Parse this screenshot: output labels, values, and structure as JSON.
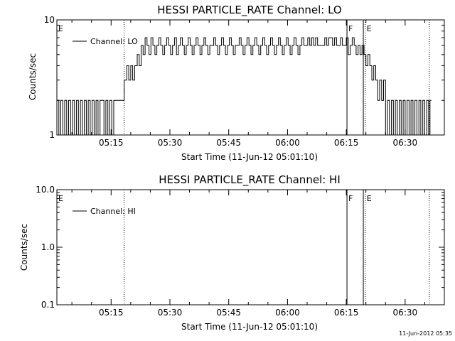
{
  "page": {
    "timestamp": "11-Jun-2012 05:35"
  },
  "chart_data": [
    {
      "type": "line",
      "title": "HESSI PARTICLE_RATE Channel: LO",
      "xlabel": "Start Time (11-Jun-12 05:01:10)",
      "ylabel": "Counts/sec",
      "xlim": [
        "05:01:10",
        "06:40:00"
      ],
      "ylim": [
        1,
        10
      ],
      "yscale": "log",
      "xticks": [
        "05:15",
        "05:30",
        "05:45",
        "06:00",
        "06:15",
        "06:30"
      ],
      "yticks": [
        "1",
        "10"
      ],
      "legend": {
        "label": "Channel: LO",
        "placement": "top-left"
      },
      "markers": [
        {
          "label": "E",
          "time": "05:01:10",
          "style": "dotted"
        },
        {
          "label": "",
          "time": "05:18:20",
          "style": "dotted"
        },
        {
          "label": "F",
          "time": "06:15:10",
          "style": "solid"
        },
        {
          "label": "",
          "time": "06:19:20",
          "style": "solid"
        },
        {
          "label": "E",
          "time": "06:19:50",
          "style": "dotted"
        },
        {
          "label": "",
          "time": "06:36:10",
          "style": "dotted"
        }
      ],
      "series": [
        {
          "name": "Channel: LO",
          "step": true,
          "data": [
            [
              "05:01:10",
              2
            ],
            [
              "05:01:40",
              1
            ],
            [
              "05:02:10",
              2
            ],
            [
              "05:02:40",
              1
            ],
            [
              "05:03:10",
              2
            ],
            [
              "05:03:40",
              1
            ],
            [
              "05:04:10",
              2
            ],
            [
              "05:04:40",
              1
            ],
            [
              "05:05:10",
              2
            ],
            [
              "05:05:40",
              1
            ],
            [
              "05:06:10",
              2
            ],
            [
              "05:06:40",
              1
            ],
            [
              "05:07:10",
              2
            ],
            [
              "05:07:40",
              1
            ],
            [
              "05:08:10",
              2
            ],
            [
              "05:08:40",
              1
            ],
            [
              "05:09:10",
              2
            ],
            [
              "05:09:40",
              1
            ],
            [
              "05:10:10",
              2
            ],
            [
              "05:10:40",
              1
            ],
            [
              "05:11:10",
              2
            ],
            [
              "05:11:40",
              1
            ],
            [
              "05:12:10",
              2
            ],
            [
              "05:13:10",
              1
            ],
            [
              "05:13:40",
              2
            ],
            [
              "05:14:10",
              1
            ],
            [
              "05:14:40",
              2
            ],
            [
              "05:15:10",
              1
            ],
            [
              "05:15:40",
              2
            ],
            [
              "05:18:00",
              2
            ],
            [
              "05:18:20",
              3
            ],
            [
              "05:19:00",
              4
            ],
            [
              "05:19:30",
              3
            ],
            [
              "05:20:00",
              4
            ],
            [
              "05:20:30",
              3
            ],
            [
              "05:21:00",
              4
            ],
            [
              "05:21:40",
              5
            ],
            [
              "05:22:10",
              4
            ],
            [
              "05:22:40",
              6
            ],
            [
              "05:23:10",
              5
            ],
            [
              "05:23:40",
              7
            ],
            [
              "05:24:10",
              6
            ],
            [
              "05:24:40",
              5
            ],
            [
              "05:25:10",
              7
            ],
            [
              "05:25:40",
              6
            ],
            [
              "05:26:10",
              5
            ],
            [
              "05:26:40",
              6
            ],
            [
              "05:27:10",
              7
            ],
            [
              "05:27:40",
              6
            ],
            [
              "05:28:10",
              5
            ],
            [
              "05:28:40",
              6
            ],
            [
              "05:29:10",
              7
            ],
            [
              "05:29:40",
              6
            ],
            [
              "05:30:10",
              5
            ],
            [
              "05:30:40",
              6
            ],
            [
              "05:31:10",
              7
            ],
            [
              "05:31:40",
              5
            ],
            [
              "05:32:10",
              6
            ],
            [
              "05:32:40",
              7
            ],
            [
              "05:33:10",
              6
            ],
            [
              "05:33:40",
              5
            ],
            [
              "05:34:10",
              6
            ],
            [
              "05:34:40",
              7
            ],
            [
              "05:35:10",
              6
            ],
            [
              "05:35:40",
              5
            ],
            [
              "05:36:10",
              6
            ],
            [
              "05:36:40",
              7
            ],
            [
              "05:37:10",
              6
            ],
            [
              "05:37:40",
              5
            ],
            [
              "05:38:10",
              6
            ],
            [
              "05:38:40",
              7
            ],
            [
              "05:39:10",
              6
            ],
            [
              "05:39:40",
              5
            ],
            [
              "05:40:10",
              6
            ],
            [
              "05:40:40",
              6
            ],
            [
              "05:41:10",
              7
            ],
            [
              "05:41:40",
              6
            ],
            [
              "05:42:10",
              5
            ],
            [
              "05:42:40",
              6
            ],
            [
              "05:43:10",
              7
            ],
            [
              "05:43:40",
              6
            ],
            [
              "05:44:10",
              5
            ],
            [
              "05:44:40",
              6
            ],
            [
              "05:45:10",
              7
            ],
            [
              "05:45:40",
              6
            ],
            [
              "05:46:10",
              5
            ],
            [
              "05:46:40",
              6
            ],
            [
              "05:47:10",
              6
            ],
            [
              "05:47:40",
              7
            ],
            [
              "05:48:10",
              6
            ],
            [
              "05:48:40",
              5
            ],
            [
              "05:49:10",
              6
            ],
            [
              "05:49:40",
              7
            ],
            [
              "05:50:10",
              6
            ],
            [
              "05:50:40",
              5
            ],
            [
              "05:51:10",
              6
            ],
            [
              "05:51:40",
              7
            ],
            [
              "05:52:10",
              6
            ],
            [
              "05:52:40",
              5
            ],
            [
              "05:53:10",
              6
            ],
            [
              "05:53:40",
              7
            ],
            [
              "05:54:10",
              6
            ],
            [
              "05:54:40",
              5
            ],
            [
              "05:55:10",
              6
            ],
            [
              "05:55:40",
              7
            ],
            [
              "05:56:10",
              6
            ],
            [
              "05:56:40",
              5
            ],
            [
              "05:57:10",
              6
            ],
            [
              "05:57:40",
              7
            ],
            [
              "05:58:10",
              6
            ],
            [
              "05:58:40",
              5
            ],
            [
              "05:59:10",
              6
            ],
            [
              "05:59:40",
              7
            ],
            [
              "06:00:10",
              6
            ],
            [
              "06:00:40",
              5
            ],
            [
              "06:01:10",
              6
            ],
            [
              "06:01:40",
              7
            ],
            [
              "06:02:10",
              6
            ],
            [
              "06:02:40",
              5
            ],
            [
              "06:03:10",
              6
            ],
            [
              "06:03:40",
              7
            ],
            [
              "06:04:10",
              6
            ],
            [
              "06:04:40",
              6
            ],
            [
              "06:05:10",
              7
            ],
            [
              "06:05:40",
              6
            ],
            [
              "06:06:10",
              7
            ],
            [
              "06:06:40",
              6
            ],
            [
              "06:07:10",
              7
            ],
            [
              "06:07:40",
              6
            ],
            [
              "06:09:00",
              6
            ],
            [
              "06:09:30",
              7
            ],
            [
              "06:10:00",
              6
            ],
            [
              "06:10:30",
              7
            ],
            [
              "06:11:00",
              7
            ],
            [
              "06:11:30",
              6
            ],
            [
              "06:12:00",
              7
            ],
            [
              "06:12:30",
              6
            ],
            [
              "06:13:00",
              6
            ],
            [
              "06:13:30",
              7
            ],
            [
              "06:14:00",
              6
            ],
            [
              "06:14:30",
              6
            ],
            [
              "06:15:00",
              7
            ],
            [
              "06:15:30",
              5
            ],
            [
              "06:16:00",
              6
            ],
            [
              "06:16:30",
              7
            ],
            [
              "06:17:00",
              6
            ],
            [
              "06:17:30",
              5
            ],
            [
              "06:18:00",
              6
            ],
            [
              "06:18:30",
              5
            ],
            [
              "06:19:00",
              6
            ],
            [
              "06:19:30",
              5
            ],
            [
              "06:20:00",
              4
            ],
            [
              "06:20:30",
              5
            ],
            [
              "06:21:00",
              4
            ],
            [
              "06:21:30",
              3
            ],
            [
              "06:22:00",
              4
            ],
            [
              "06:22:30",
              3
            ],
            [
              "06:23:00",
              2
            ],
            [
              "06:23:30",
              3
            ],
            [
              "06:24:00",
              2
            ],
            [
              "06:24:30",
              3
            ],
            [
              "06:25:00",
              1
            ],
            [
              "06:25:30",
              2
            ],
            [
              "06:26:00",
              1
            ],
            [
              "06:26:30",
              2
            ],
            [
              "06:27:00",
              1
            ],
            [
              "06:27:30",
              2
            ],
            [
              "06:28:00",
              1
            ],
            [
              "06:28:30",
              2
            ],
            [
              "06:29:00",
              1
            ],
            [
              "06:29:30",
              2
            ],
            [
              "06:30:00",
              1
            ],
            [
              "06:30:30",
              2
            ],
            [
              "06:31:00",
              1
            ],
            [
              "06:31:30",
              2
            ],
            [
              "06:32:00",
              1
            ],
            [
              "06:32:30",
              2
            ],
            [
              "06:33:00",
              1
            ],
            [
              "06:33:30",
              2
            ],
            [
              "06:34:00",
              1
            ],
            [
              "06:34:30",
              2
            ],
            [
              "06:35:00",
              1
            ],
            [
              "06:35:30",
              2
            ],
            [
              "06:36:00",
              1
            ],
            [
              "06:36:20",
              2
            ]
          ]
        }
      ]
    },
    {
      "type": "line",
      "title": "HESSI PARTICLE_RATE Channel: HI",
      "xlabel": "Start Time (11-Jun-12 05:01:10)",
      "ylabel": "Counts/sec",
      "xlim": [
        "05:01:10",
        "06:40:00"
      ],
      "ylim": [
        0.1,
        10
      ],
      "yscale": "log",
      "xticks": [
        "05:15",
        "05:30",
        "05:45",
        "06:00",
        "06:15",
        "06:30"
      ],
      "yticks": [
        "0.1",
        "1.0",
        "10.0"
      ],
      "legend": {
        "label": "Channel: HI",
        "placement": "top-left"
      },
      "markers": [
        {
          "label": "E",
          "time": "05:01:10",
          "style": "dotted"
        },
        {
          "label": "",
          "time": "05:18:20",
          "style": "dotted"
        },
        {
          "label": "F",
          "time": "06:15:10",
          "style": "solid"
        },
        {
          "label": "",
          "time": "06:19:20",
          "style": "solid"
        },
        {
          "label": "E",
          "time": "06:19:50",
          "style": "dotted"
        },
        {
          "label": "",
          "time": "06:36:10",
          "style": "dotted"
        }
      ],
      "series": [
        {
          "name": "Channel: HI",
          "step": true,
          "data": []
        }
      ]
    }
  ]
}
